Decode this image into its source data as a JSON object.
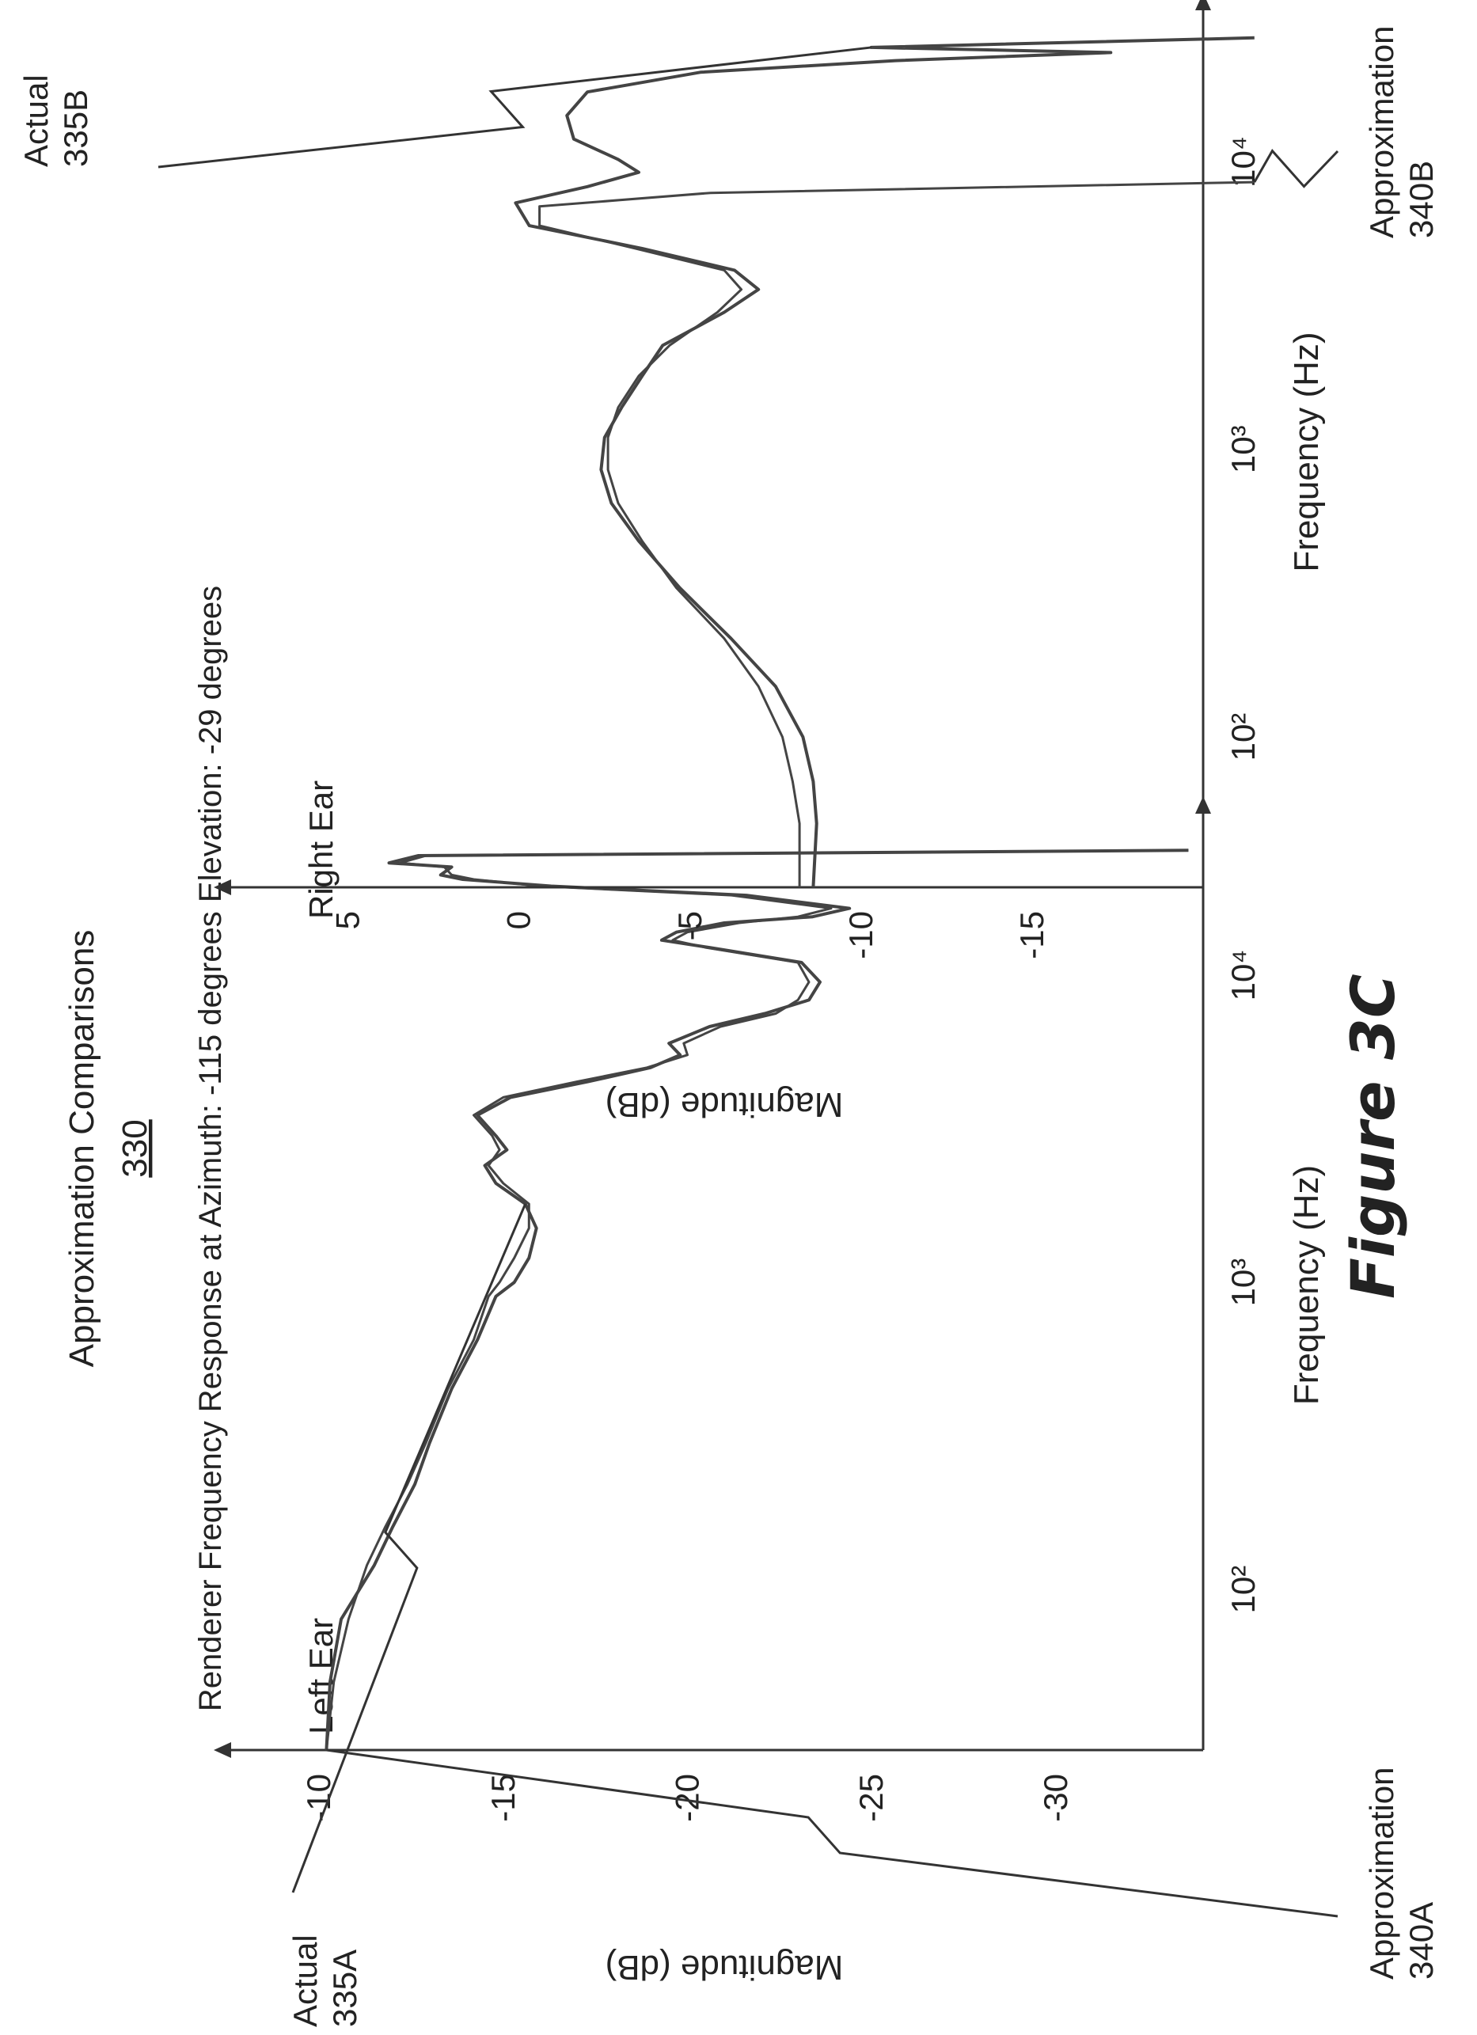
{
  "figure": {
    "label": "Figure 3C",
    "title": "Approximation Comparisons",
    "ref": "330",
    "subtitle": "Renderer Frequency Response at Azimuth: -115 degrees Elevation: -29 degrees"
  },
  "colors": {
    "stroke": "#333333",
    "curve": "#444444",
    "text": "#222222"
  },
  "chart_data": [
    {
      "type": "line",
      "title": "Left Ear",
      "xlabel": "Frequency (Hz)",
      "ylabel": "Magnitude (dB)",
      "xscale": "log",
      "xlim": [
        30,
        32000
      ],
      "ylim": [
        -34,
        -8
      ],
      "xticks": [
        {
          "v": 100,
          "label": "10²"
        },
        {
          "v": 1000,
          "label": "10³"
        },
        {
          "v": 10000,
          "label": "10⁴"
        }
      ],
      "yticks": [
        {
          "v": -10,
          "label": "-10"
        },
        {
          "v": -15,
          "label": "-15"
        },
        {
          "v": -20,
          "label": "-20"
        },
        {
          "v": -25,
          "label": "-25"
        },
        {
          "v": -30,
          "label": "-30"
        }
      ],
      "series": [
        {
          "key": "actual",
          "points": [
            [
              30,
              -10.2
            ],
            [
              50,
              -10.3
            ],
            [
              80,
              -10.6
            ],
            [
              120,
              -11.5
            ],
            [
              160,
              -12.0
            ],
            [
              220,
              -12.6
            ],
            [
              300,
              -13.0
            ],
            [
              450,
              -13.6
            ],
            [
              650,
              -14.3
            ],
            [
              900,
              -14.8
            ],
            [
              1000,
              -15.3
            ],
            [
              1200,
              -15.7
            ],
            [
              1500,
              -15.9
            ],
            [
              1800,
              -15.6
            ],
            [
              2100,
              -14.8
            ],
            [
              2400,
              -14.5
            ],
            [
              2700,
              -15.1
            ],
            [
              3000,
              -14.8
            ],
            [
              3500,
              -14.3
            ],
            [
              4000,
              -15.2
            ],
            [
              4500,
              -17.3
            ],
            [
              5000,
              -19.0
            ],
            [
              5500,
              -19.8
            ],
            [
              6000,
              -19.5
            ],
            [
              6800,
              -20.6
            ],
            [
              7500,
              -22.1
            ],
            [
              8300,
              -23.3
            ],
            [
              9500,
              -23.6
            ],
            [
              11000,
              -23.1
            ],
            [
              12300,
              -20.6
            ],
            [
              13000,
              -19.3
            ],
            [
              13800,
              -19.7
            ],
            [
              14800,
              -21.0
            ],
            [
              15500,
              -23.4
            ],
            [
              16500,
              -24.4
            ],
            [
              18200,
              -21.6
            ],
            [
              19500,
              -16.3
            ],
            [
              20500,
              -13.9
            ],
            [
              21200,
              -13.3
            ],
            [
              22500,
              -13.6
            ],
            [
              23200,
              -11.9
            ],
            [
              24500,
              -12.7
            ],
            [
              25500,
              -33.6
            ]
          ]
        },
        {
          "key": "approximation",
          "points": [
            [
              30,
              -10.2
            ],
            [
              50,
              -10.4
            ],
            [
              80,
              -10.8
            ],
            [
              120,
              -11.3
            ],
            [
              160,
              -11.8
            ],
            [
              220,
              -12.4
            ],
            [
              300,
              -12.9
            ],
            [
              450,
              -13.5
            ],
            [
              650,
              -14.2
            ],
            [
              900,
              -14.6
            ],
            [
              1000,
              -14.9
            ],
            [
              1200,
              -15.3
            ],
            [
              1500,
              -15.7
            ],
            [
              1800,
              -15.7
            ],
            [
              2100,
              -15.0
            ],
            [
              2400,
              -14.6
            ],
            [
              2700,
              -14.9
            ],
            [
              3000,
              -14.7
            ],
            [
              3500,
              -14.2
            ],
            [
              4000,
              -15.0
            ],
            [
              4500,
              -17.0
            ],
            [
              5000,
              -18.9
            ],
            [
              5500,
              -20.0
            ],
            [
              6000,
              -19.9
            ],
            [
              6800,
              -20.9
            ],
            [
              7500,
              -22.4
            ],
            [
              8300,
              -23.0
            ],
            [
              9500,
              -23.3
            ],
            [
              11000,
              -23.0
            ],
            [
              12300,
              -20.5
            ],
            [
              13000,
              -19.6
            ],
            [
              13800,
              -20.0
            ],
            [
              14800,
              -21.4
            ],
            [
              15500,
              -23.0
            ],
            [
              16500,
              -23.9
            ],
            [
              18200,
              -21.2
            ],
            [
              19500,
              -16.0
            ],
            [
              20500,
              -14.2
            ],
            [
              21200,
              -13.6
            ],
            [
              22500,
              -13.4
            ],
            [
              23200,
              -12.2
            ],
            [
              24500,
              -12.9
            ],
            [
              25500,
              -33.6
            ]
          ]
        }
      ],
      "callouts": [
        {
          "series": "actual",
          "text": [
            "Actual",
            "335A"
          ]
        },
        {
          "series": "approximation",
          "text": [
            "Approximation",
            "340A"
          ]
        }
      ]
    },
    {
      "type": "line",
      "title": "Right Ear",
      "xlabel": "Frequency (Hz)",
      "ylabel": "Magnitude (dB)",
      "xscale": "log",
      "xlim": [
        30,
        32000
      ],
      "ylim": [
        -20,
        8
      ],
      "xticks": [
        {
          "v": 100,
          "label": "10²"
        },
        {
          "v": 1000,
          "label": "10³"
        },
        {
          "v": 10000,
          "label": "10⁴"
        }
      ],
      "yticks": [
        {
          "v": 5,
          "label": "5"
        },
        {
          "v": 0,
          "label": "0"
        },
        {
          "v": -5,
          "label": "-5"
        },
        {
          "v": -10,
          "label": "-10"
        },
        {
          "v": -15,
          "label": "-15"
        }
      ],
      "series": [
        {
          "key": "actual",
          "points": [
            [
              30,
              -8.6
            ],
            [
              50,
              -8.7
            ],
            [
              70,
              -8.6
            ],
            [
              100,
              -8.3
            ],
            [
              150,
              -7.5
            ],
            [
              220,
              -6.2
            ],
            [
              330,
              -4.7
            ],
            [
              480,
              -3.5
            ],
            [
              650,
              -2.7
            ],
            [
              850,
              -2.4
            ],
            [
              1100,
              -2.5
            ],
            [
              1400,
              -3.0
            ],
            [
              1800,
              -3.6
            ],
            [
              2300,
              -4.2
            ],
            [
              3000,
              -6.0
            ],
            [
              3600,
              -7.0
            ],
            [
              4200,
              -6.3
            ],
            [
              5000,
              -3.6
            ],
            [
              6000,
              -0.3
            ],
            [
              7200,
              0.1
            ],
            [
              8200,
              -2.0
            ],
            [
              9200,
              -3.5
            ],
            [
              10200,
              -2.9
            ],
            [
              12000,
              -1.6
            ],
            [
              14500,
              -1.4
            ],
            [
              17500,
              -2.0
            ],
            [
              20500,
              -5.3
            ],
            [
              22500,
              -11.0
            ],
            [
              24000,
              -17.3
            ],
            [
              25000,
              -10.3
            ],
            [
              27000,
              -21.5
            ]
          ]
        },
        {
          "key": "approximation",
          "points": [
            [
              30,
              -8.2
            ],
            [
              50,
              -8.2
            ],
            [
              70,
              -8.0
            ],
            [
              100,
              -7.7
            ],
            [
              150,
              -7.0
            ],
            [
              220,
              -6.0
            ],
            [
              330,
              -4.6
            ],
            [
              480,
              -3.6
            ],
            [
              650,
              -2.9
            ],
            [
              850,
              -2.6
            ],
            [
              1100,
              -2.6
            ],
            [
              1400,
              -2.9
            ],
            [
              1800,
              -3.5
            ],
            [
              2300,
              -4.4
            ],
            [
              3000,
              -5.8
            ],
            [
              3600,
              -6.5
            ],
            [
              4200,
              -6.0
            ],
            [
              5000,
              -3.4
            ],
            [
              6000,
              -0.6
            ],
            [
              7000,
              -0.6
            ],
            [
              7800,
              -5.6
            ],
            [
              8500,
              -21.5
            ]
          ]
        }
      ],
      "callouts": [
        {
          "series": "actual",
          "text": [
            "Actual",
            "335B"
          ]
        },
        {
          "series": "approximation",
          "text": [
            "Approximation",
            "340B"
          ]
        }
      ]
    }
  ]
}
